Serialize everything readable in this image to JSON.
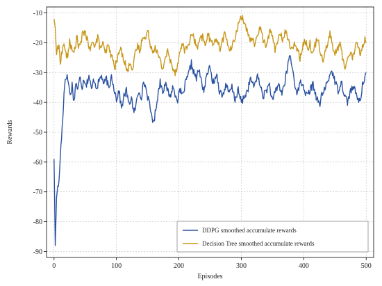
{
  "chart_data": {
    "type": "line",
    "title": "",
    "xlabel": "Episodes",
    "ylabel": "Rewards",
    "xlim": [
      -12,
      512
    ],
    "ylim": [
      -92,
      -8
    ],
    "xticks": [
      0,
      100,
      200,
      300,
      400,
      500
    ],
    "yticks": [
      -90,
      -80,
      -70,
      -60,
      -50,
      -40,
      -30,
      -20,
      -10
    ],
    "grid": true,
    "legend_position": "lower-right",
    "series": [
      {
        "name": "DDPG smoothed accumulate rewards",
        "color": "#2a52a0",
        "anchors": [
          [
            0,
            -59
          ],
          [
            2,
            -88
          ],
          [
            4,
            -72
          ],
          [
            6,
            -68
          ],
          [
            8,
            -67
          ],
          [
            10,
            -58
          ],
          [
            12,
            -52
          ],
          [
            14,
            -45
          ],
          [
            16,
            -37
          ],
          [
            18,
            -32
          ],
          [
            20,
            -31
          ],
          [
            23,
            -33
          ],
          [
            26,
            -38
          ],
          [
            29,
            -34
          ],
          [
            32,
            -40
          ],
          [
            35,
            -33
          ],
          [
            38,
            -36
          ],
          [
            42,
            -31
          ],
          [
            45,
            -35
          ],
          [
            48,
            -32
          ],
          [
            52,
            -34
          ],
          [
            56,
            -31
          ],
          [
            60,
            -36
          ],
          [
            64,
            -32
          ],
          [
            68,
            -35
          ],
          [
            72,
            -33
          ],
          [
            76,
            -31
          ],
          [
            80,
            -34
          ],
          [
            84,
            -32
          ],
          [
            88,
            -36
          ],
          [
            92,
            -31
          ],
          [
            96,
            -35
          ],
          [
            100,
            -39
          ],
          [
            104,
            -36
          ],
          [
            108,
            -42
          ],
          [
            112,
            -38
          ],
          [
            116,
            -36
          ],
          [
            120,
            -41
          ],
          [
            124,
            -38
          ],
          [
            128,
            -44
          ],
          [
            132,
            -40
          ],
          [
            136,
            -36
          ],
          [
            140,
            -38
          ],
          [
            144,
            -33
          ],
          [
            148,
            -36
          ],
          [
            152,
            -40
          ],
          [
            156,
            -44
          ],
          [
            160,
            -47
          ],
          [
            163,
            -42
          ],
          [
            166,
            -38
          ],
          [
            170,
            -33
          ],
          [
            174,
            -36
          ],
          [
            178,
            -34
          ],
          [
            182,
            -36
          ],
          [
            186,
            -38
          ],
          [
            190,
            -35
          ],
          [
            194,
            -37
          ],
          [
            198,
            -39
          ],
          [
            202,
            -36
          ],
          [
            206,
            -38
          ],
          [
            210,
            -34
          ],
          [
            215,
            -31
          ],
          [
            220,
            -27
          ],
          [
            224,
            -30
          ],
          [
            228,
            -32
          ],
          [
            232,
            -29
          ],
          [
            236,
            -33
          ],
          [
            240,
            -36
          ],
          [
            244,
            -32
          ],
          [
            248,
            -28
          ],
          [
            252,
            -31
          ],
          [
            256,
            -34
          ],
          [
            260,
            -30
          ],
          [
            265,
            -36
          ],
          [
            270,
            -38
          ],
          [
            275,
            -34
          ],
          [
            280,
            -37
          ],
          [
            285,
            -35
          ],
          [
            290,
            -39
          ],
          [
            295,
            -36
          ],
          [
            300,
            -40
          ],
          [
            305,
            -38
          ],
          [
            310,
            -36
          ],
          [
            315,
            -32
          ],
          [
            320,
            -35
          ],
          [
            325,
            -31
          ],
          [
            330,
            -34
          ],
          [
            335,
            -38
          ],
          [
            340,
            -36
          ],
          [
            345,
            -34
          ],
          [
            350,
            -40
          ],
          [
            355,
            -36
          ],
          [
            360,
            -34
          ],
          [
            365,
            -37
          ],
          [
            370,
            -33
          ],
          [
            375,
            -27
          ],
          [
            378,
            -24
          ],
          [
            382,
            -29
          ],
          [
            386,
            -34
          ],
          [
            390,
            -37
          ],
          [
            395,
            -33
          ],
          [
            400,
            -35
          ],
          [
            405,
            -38
          ],
          [
            410,
            -36
          ],
          [
            415,
            -34
          ],
          [
            420,
            -38
          ],
          [
            425,
            -41
          ],
          [
            430,
            -37
          ],
          [
            435,
            -35
          ],
          [
            440,
            -32
          ],
          [
            445,
            -29
          ],
          [
            450,
            -33
          ],
          [
            455,
            -36
          ],
          [
            460,
            -33
          ],
          [
            465,
            -37
          ],
          [
            470,
            -40
          ],
          [
            475,
            -36
          ],
          [
            480,
            -35
          ],
          [
            485,
            -38
          ],
          [
            490,
            -40
          ],
          [
            495,
            -33
          ],
          [
            500,
            -30
          ]
        ]
      },
      {
        "name": "Decision Tree smoothed accumulate rewards",
        "color": "#c8961a",
        "anchors": [
          [
            0,
            -12
          ],
          [
            2,
            -15
          ],
          [
            4,
            -24
          ],
          [
            6,
            -21
          ],
          [
            8,
            -22
          ],
          [
            10,
            -26
          ],
          [
            13,
            -23
          ],
          [
            16,
            -20
          ],
          [
            19,
            -24
          ],
          [
            22,
            -25
          ],
          [
            25,
            -19
          ],
          [
            28,
            -22
          ],
          [
            31,
            -24
          ],
          [
            34,
            -21
          ],
          [
            37,
            -18
          ],
          [
            40,
            -22
          ],
          [
            43,
            -20
          ],
          [
            46,
            -17
          ],
          [
            50,
            -16
          ],
          [
            54,
            -20
          ],
          [
            58,
            -23
          ],
          [
            62,
            -19
          ],
          [
            66,
            -21
          ],
          [
            70,
            -18
          ],
          [
            74,
            -22
          ],
          [
            78,
            -20
          ],
          [
            82,
            -24
          ],
          [
            86,
            -21
          ],
          [
            90,
            -23
          ],
          [
            94,
            -26
          ],
          [
            98,
            -28
          ],
          [
            102,
            -25
          ],
          [
            106,
            -22
          ],
          [
            110,
            -24
          ],
          [
            114,
            -27
          ],
          [
            118,
            -30
          ],
          [
            122,
            -26
          ],
          [
            126,
            -29
          ],
          [
            130,
            -24
          ],
          [
            134,
            -21
          ],
          [
            138,
            -23
          ],
          [
            142,
            -17
          ],
          [
            146,
            -19
          ],
          [
            150,
            -16
          ],
          [
            154,
            -20
          ],
          [
            158,
            -23
          ],
          [
            162,
            -21
          ],
          [
            166,
            -24
          ],
          [
            170,
            -26
          ],
          [
            174,
            -29
          ],
          [
            178,
            -25
          ],
          [
            182,
            -23
          ],
          [
            186,
            -26
          ],
          [
            190,
            -28
          ],
          [
            194,
            -30
          ],
          [
            198,
            -27
          ],
          [
            202,
            -23
          ],
          [
            206,
            -20
          ],
          [
            210,
            -23
          ],
          [
            214,
            -21
          ],
          [
            218,
            -19
          ],
          [
            222,
            -17
          ],
          [
            226,
            -20
          ],
          [
            230,
            -22
          ],
          [
            234,
            -19
          ],
          [
            238,
            -18
          ],
          [
            242,
            -21
          ],
          [
            246,
            -17
          ],
          [
            250,
            -19
          ],
          [
            254,
            -21
          ],
          [
            258,
            -18
          ],
          [
            262,
            -20
          ],
          [
            266,
            -22
          ],
          [
            270,
            -19
          ],
          [
            274,
            -17
          ],
          [
            278,
            -20
          ],
          [
            282,
            -23
          ],
          [
            286,
            -21
          ],
          [
            290,
            -18
          ],
          [
            294,
            -15
          ],
          [
            298,
            -12
          ],
          [
            302,
            -11
          ],
          [
            306,
            -14
          ],
          [
            310,
            -17
          ],
          [
            314,
            -20
          ],
          [
            318,
            -18
          ],
          [
            322,
            -21
          ],
          [
            326,
            -17
          ],
          [
            330,
            -15
          ],
          [
            334,
            -18
          ],
          [
            338,
            -21
          ],
          [
            342,
            -19
          ],
          [
            346,
            -16
          ],
          [
            350,
            -18
          ],
          [
            354,
            -22
          ],
          [
            358,
            -20
          ],
          [
            362,
            -17
          ],
          [
            366,
            -19
          ],
          [
            370,
            -16
          ],
          [
            374,
            -18
          ],
          [
            378,
            -21
          ],
          [
            382,
            -23
          ],
          [
            386,
            -20
          ],
          [
            390,
            -22
          ],
          [
            394,
            -25
          ],
          [
            398,
            -21
          ],
          [
            402,
            -19
          ],
          [
            406,
            -22
          ],
          [
            410,
            -20
          ],
          [
            414,
            -24
          ],
          [
            418,
            -21
          ],
          [
            422,
            -18
          ],
          [
            426,
            -22
          ],
          [
            430,
            -26
          ],
          [
            434,
            -23
          ],
          [
            438,
            -20
          ],
          [
            442,
            -17
          ],
          [
            446,
            -21
          ],
          [
            450,
            -24
          ],
          [
            454,
            -22
          ],
          [
            458,
            -20
          ],
          [
            462,
            -25
          ],
          [
            466,
            -28
          ],
          [
            470,
            -26
          ],
          [
            474,
            -23
          ],
          [
            478,
            -25
          ],
          [
            482,
            -22
          ],
          [
            486,
            -20
          ],
          [
            490,
            -24
          ],
          [
            494,
            -21
          ],
          [
            498,
            -19
          ],
          [
            500,
            -20
          ]
        ]
      }
    ]
  }
}
